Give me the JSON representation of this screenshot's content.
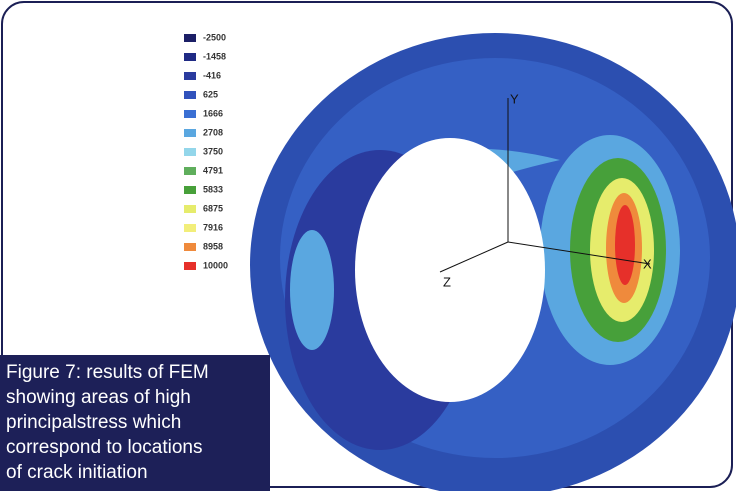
{
  "legend": {
    "items": [
      {
        "label": "-2500",
        "color": "#1b1f66"
      },
      {
        "label": "-1458",
        "color": "#1f2a84"
      },
      {
        "label": "-416",
        "color": "#2a3b9e"
      },
      {
        "label": "625",
        "color": "#3152bc"
      },
      {
        "label": "1666",
        "color": "#3a6fd3"
      },
      {
        "label": "2708",
        "color": "#5aa7e0"
      },
      {
        "label": "3750",
        "color": "#93d6ea"
      },
      {
        "label": "4791",
        "color": "#5fae5c"
      },
      {
        "label": "5833",
        "color": "#47a03a"
      },
      {
        "label": "6875",
        "color": "#e6ec6c"
      },
      {
        "label": "7916",
        "color": "#f2ee7a"
      },
      {
        "label": "8958",
        "color": "#ef8a3c"
      },
      {
        "label": "10000",
        "color": "#e6302a"
      }
    ]
  },
  "axes": {
    "x": "X",
    "y": "Y",
    "z": "Z"
  },
  "caption": {
    "lines": [
      "Figure 7: results of FEM",
      "showing areas of high",
      "principalstress which",
      "correspond to locations",
      "of crack initiation"
    ]
  }
}
